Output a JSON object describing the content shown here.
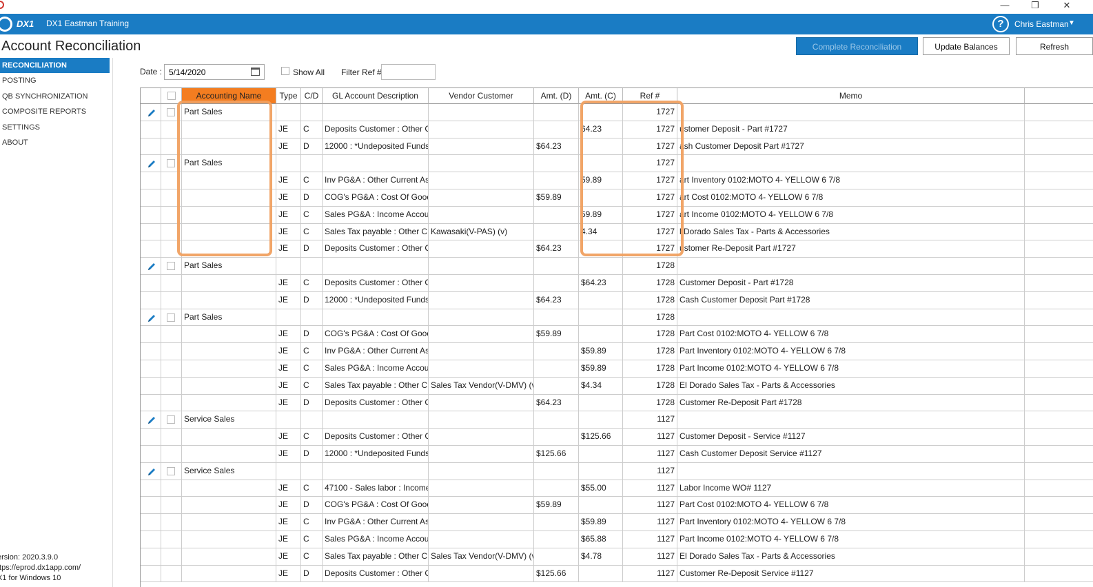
{
  "window": {
    "minimize": "—",
    "maximize": "❐",
    "close": "✕"
  },
  "header": {
    "logo_text": "DX1",
    "app_title": "DX1 Eastman Training",
    "help": "?",
    "user": "Chris Eastman",
    "caret": "▼"
  },
  "page": {
    "title": "Account Reconciliation"
  },
  "buttons": {
    "complete": "Complete Reconciliation",
    "update": "Update Balances",
    "refresh": "Refresh"
  },
  "sidebar": {
    "items": [
      "RECONCILIATION",
      "POSTING",
      "QB SYNCHRONIZATION",
      "COMPOSITE REPORTS",
      "SETTINGS",
      "ABOUT"
    ],
    "version": [
      "ersion: 2020.3.9.0",
      "ttps://eprod.dx1app.com/",
      "X1 for Windows 10"
    ]
  },
  "filters": {
    "date_label": "Date :",
    "date_value": "5/14/2020",
    "show_all": "Show All",
    "filter_ref_label": "Filter Ref #",
    "filter_ref_value": ""
  },
  "grid": {
    "columns": [
      "",
      "",
      "Accounting Name",
      "Type",
      "C/D",
      "GL Account Description",
      "Vendor Customer",
      "Amt. (D)",
      "Amt. (C)",
      "Ref #",
      "Memo",
      ""
    ],
    "rows": [
      {
        "edit": true,
        "name": "Part Sales",
        "type": "",
        "cd": "",
        "gl": "",
        "vendor": "",
        "amt_d": "",
        "amt_c": "",
        "ref": "1727",
        "memo": ""
      },
      {
        "edit": false,
        "name": "",
        "type": "JE",
        "cd": "C",
        "gl": "Deposits Customer : Other C",
        "vendor": "",
        "amt_d": "",
        "amt_c": "64.23",
        "ref": "1727",
        "memo": "ustomer Deposit - Part #1727"
      },
      {
        "edit": false,
        "name": "",
        "type": "JE",
        "cd": "D",
        "gl": "12000 : *Undeposited Funds",
        "vendor": "",
        "amt_d": "$64.23",
        "amt_c": "",
        "ref": "1727",
        "memo": "ash Customer Deposit Part #1727"
      },
      {
        "edit": true,
        "name": "Part Sales",
        "type": "",
        "cd": "",
        "gl": "",
        "vendor": "",
        "amt_d": "",
        "amt_c": "",
        "ref": "1727",
        "memo": ""
      },
      {
        "edit": false,
        "name": "",
        "type": "JE",
        "cd": "C",
        "gl": "Inv PG&A : Other Current As",
        "vendor": "",
        "amt_d": "",
        "amt_c": "59.89",
        "ref": "1727",
        "memo": "art Inventory 0102:MOTO 4- YELLOW 6 7/8"
      },
      {
        "edit": false,
        "name": "",
        "type": "JE",
        "cd": "D",
        "gl": "COG's PG&A : Cost Of Good",
        "vendor": "",
        "amt_d": "$59.89",
        "amt_c": "",
        "ref": "1727",
        "memo": "art Cost 0102:MOTO 4- YELLOW 6 7/8"
      },
      {
        "edit": false,
        "name": "",
        "type": "JE",
        "cd": "C",
        "gl": "Sales PG&A : Income Accou",
        "vendor": "",
        "amt_d": "",
        "amt_c": "59.89",
        "ref": "1727",
        "memo": "art Income 0102:MOTO 4- YELLOW 6 7/8"
      },
      {
        "edit": false,
        "name": "",
        "type": "JE",
        "cd": "C",
        "gl": "Sales Tax payable : Other Cu",
        "vendor": "Kawasaki(V-PAS) (v)",
        "amt_d": "",
        "amt_c": "4.34",
        "ref": "1727",
        "memo": "l Dorado Sales Tax - Parts & Accessories"
      },
      {
        "edit": false,
        "name": "",
        "type": "JE",
        "cd": "D",
        "gl": "Deposits Customer : Other C",
        "vendor": "",
        "amt_d": "$64.23",
        "amt_c": "",
        "ref": "1727",
        "memo": "ustomer Re-Deposit Part #1727"
      },
      {
        "edit": true,
        "name": "Part Sales",
        "type": "",
        "cd": "",
        "gl": "",
        "vendor": "",
        "amt_d": "",
        "amt_c": "",
        "ref": "1728",
        "memo": ""
      },
      {
        "edit": false,
        "name": "",
        "type": "JE",
        "cd": "C",
        "gl": "Deposits Customer : Other C",
        "vendor": "",
        "amt_d": "",
        "amt_c": "$64.23",
        "ref": "1728",
        "memo": "Customer Deposit - Part #1728"
      },
      {
        "edit": false,
        "name": "",
        "type": "JE",
        "cd": "D",
        "gl": "12000 : *Undeposited Funds",
        "vendor": "",
        "amt_d": "$64.23",
        "amt_c": "",
        "ref": "1728",
        "memo": "Cash Customer Deposit Part #1728"
      },
      {
        "edit": true,
        "name": "Part Sales",
        "type": "",
        "cd": "",
        "gl": "",
        "vendor": "",
        "amt_d": "",
        "amt_c": "",
        "ref": "1728",
        "memo": ""
      },
      {
        "edit": false,
        "name": "",
        "type": "JE",
        "cd": "D",
        "gl": "COG's PG&A : Cost Of Good",
        "vendor": "",
        "amt_d": "$59.89",
        "amt_c": "",
        "ref": "1728",
        "memo": "Part Cost 0102:MOTO 4- YELLOW 6 7/8"
      },
      {
        "edit": false,
        "name": "",
        "type": "JE",
        "cd": "C",
        "gl": "Inv PG&A : Other Current As",
        "vendor": "",
        "amt_d": "",
        "amt_c": "$59.89",
        "ref": "1728",
        "memo": "Part Inventory 0102:MOTO 4- YELLOW 6 7/8"
      },
      {
        "edit": false,
        "name": "",
        "type": "JE",
        "cd": "C",
        "gl": "Sales PG&A : Income Accou",
        "vendor": "",
        "amt_d": "",
        "amt_c": "$59.89",
        "ref": "1728",
        "memo": "Part Income 0102:MOTO 4- YELLOW 6 7/8"
      },
      {
        "edit": false,
        "name": "",
        "type": "JE",
        "cd": "C",
        "gl": "Sales Tax payable : Other Cu",
        "vendor": "Sales Tax Vendor(V-DMV) (v",
        "amt_d": "",
        "amt_c": "$4.34",
        "ref": "1728",
        "memo": "El Dorado Sales Tax - Parts & Accessories"
      },
      {
        "edit": false,
        "name": "",
        "type": "JE",
        "cd": "D",
        "gl": "Deposits Customer : Other C",
        "vendor": "",
        "amt_d": "$64.23",
        "amt_c": "",
        "ref": "1728",
        "memo": "Customer Re-Deposit Part #1728"
      },
      {
        "edit": true,
        "name": "Service Sales",
        "type": "",
        "cd": "",
        "gl": "",
        "vendor": "",
        "amt_d": "",
        "amt_c": "",
        "ref": "1127",
        "memo": ""
      },
      {
        "edit": false,
        "name": "",
        "type": "JE",
        "cd": "C",
        "gl": "Deposits Customer : Other C",
        "vendor": "",
        "amt_d": "",
        "amt_c": "$125.66",
        "ref": "1127",
        "memo": "Customer Deposit - Service #1127"
      },
      {
        "edit": false,
        "name": "",
        "type": "JE",
        "cd": "D",
        "gl": "12000 : *Undeposited Funds",
        "vendor": "",
        "amt_d": "$125.66",
        "amt_c": "",
        "ref": "1127",
        "memo": "Cash Customer Deposit Service #1127"
      },
      {
        "edit": true,
        "name": "Service Sales",
        "type": "",
        "cd": "",
        "gl": "",
        "vendor": "",
        "amt_d": "",
        "amt_c": "",
        "ref": "1127",
        "memo": ""
      },
      {
        "edit": false,
        "name": "",
        "type": "JE",
        "cd": "C",
        "gl": "47100 - Sales labor : Income",
        "vendor": "",
        "amt_d": "",
        "amt_c": "$55.00",
        "ref": "1127",
        "memo": "Labor Income  WO# 1127"
      },
      {
        "edit": false,
        "name": "",
        "type": "JE",
        "cd": "D",
        "gl": "COG's PG&A : Cost Of Good",
        "vendor": "",
        "amt_d": "$59.89",
        "amt_c": "",
        "ref": "1127",
        "memo": "Part Cost 0102:MOTO 4- YELLOW 6 7/8"
      },
      {
        "edit": false,
        "name": "",
        "type": "JE",
        "cd": "C",
        "gl": "Inv PG&A : Other Current As",
        "vendor": "",
        "amt_d": "",
        "amt_c": "$59.89",
        "ref": "1127",
        "memo": "Part Inventory 0102:MOTO 4- YELLOW 6 7/8"
      },
      {
        "edit": false,
        "name": "",
        "type": "JE",
        "cd": "C",
        "gl": "Sales PG&A : Income Accou",
        "vendor": "",
        "amt_d": "",
        "amt_c": "$65.88",
        "ref": "1127",
        "memo": "Part Income 0102:MOTO 4- YELLOW 6 7/8"
      },
      {
        "edit": false,
        "name": "",
        "type": "JE",
        "cd": "C",
        "gl": "Sales Tax payable : Other Cu",
        "vendor": "Sales Tax Vendor(V-DMV) (v",
        "amt_d": "",
        "amt_c": "$4.78",
        "ref": "1127",
        "memo": "El Dorado Sales Tax - Parts & Accessories"
      },
      {
        "edit": false,
        "name": "",
        "type": "JE",
        "cd": "D",
        "gl": "Deposits Customer : Other C",
        "vendor": "",
        "amt_d": "$125.66",
        "amt_c": "",
        "ref": "1127",
        "memo": "Customer Re-Deposit Service #1127"
      }
    ]
  },
  "colors": {
    "accent": "#1a7cc4",
    "sort_header": "#f47d20",
    "highlight": "#f0a060"
  },
  "icons": {
    "edit": "pencil-icon",
    "calendar": "calendar-icon",
    "help": "help-icon"
  }
}
